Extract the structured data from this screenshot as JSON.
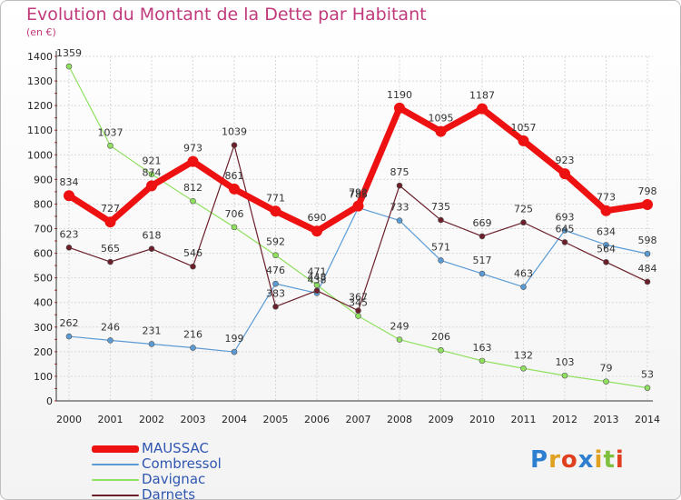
{
  "chart_data": {
    "type": "line",
    "title": "Evolution du Montant de la Dette par Habitant",
    "subtitle": "(en €)",
    "categories": [
      "2000",
      "2001",
      "2002",
      "2003",
      "2004",
      "2005",
      "2006",
      "2007",
      "2008",
      "2009",
      "2010",
      "2011",
      "2012",
      "2013",
      "2014"
    ],
    "ylim": [
      0,
      1400
    ],
    "yticks": [
      0,
      100,
      200,
      300,
      400,
      500,
      600,
      700,
      800,
      900,
      1000,
      1100,
      1200,
      1300,
      1400
    ],
    "grid": true,
    "legend_position": "bottom-left",
    "series": [
      {
        "name": "MAUSSAC",
        "color": "#ee1111",
        "values": [
          834,
          727,
          874,
          973,
          861,
          771,
          690,
          792,
          1190,
          1095,
          1187,
          1057,
          923,
          773,
          798
        ]
      },
      {
        "name": "Combressol",
        "color": "#5b9bd5",
        "values": [
          262,
          246,
          231,
          216,
          199,
          476,
          438,
          785,
          733,
          571,
          517,
          463,
          693,
          634,
          598
        ]
      },
      {
        "name": "Davignac",
        "color": "#90e060",
        "values": [
          1359,
          1037,
          921,
          812,
          706,
          592,
          471,
          345,
          249,
          206,
          163,
          132,
          103,
          79,
          53
        ]
      },
      {
        "name": "Darnets",
        "color": "#6b1f2a",
        "values": [
          623,
          565,
          618,
          546,
          1039,
          383,
          448,
          367,
          875,
          735,
          669,
          725,
          645,
          564,
          484
        ]
      }
    ]
  },
  "logo": {
    "letters": [
      {
        "ch": "P",
        "color": "#2f7fd0"
      },
      {
        "ch": "r",
        "color": "#e0a020"
      },
      {
        "ch": "o",
        "color": "#e04020"
      },
      {
        "ch": "x",
        "color": "#2f7fd0"
      },
      {
        "ch": "i",
        "color": "#e0a020"
      },
      {
        "ch": "t",
        "color": "#7fc03f"
      },
      {
        "ch": "i",
        "color": "#e04020"
      }
    ]
  }
}
